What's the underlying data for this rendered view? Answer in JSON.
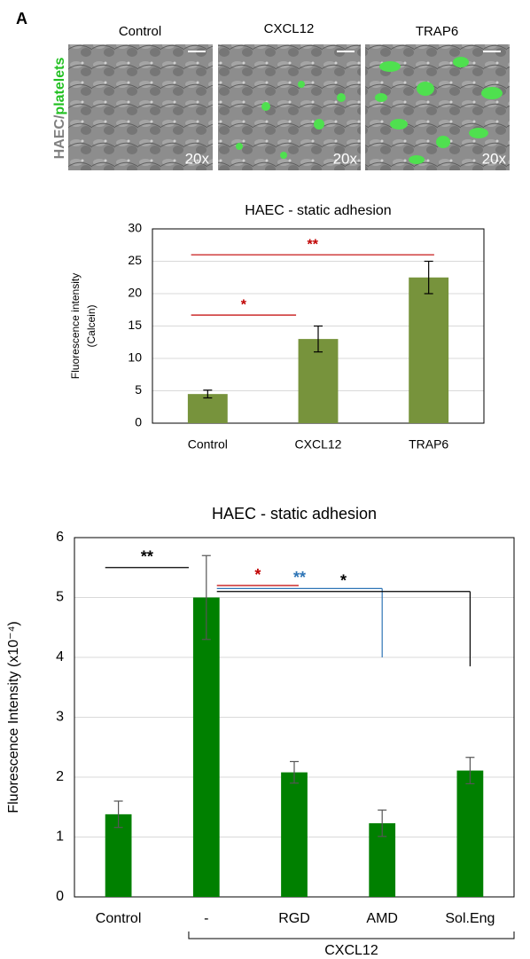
{
  "panel_label": "A",
  "image_side_label": {
    "part1": "HAEC/",
    "part2": "platelets"
  },
  "images": [
    {
      "label": "Control",
      "magnification": "20x"
    },
    {
      "label": "CXCL12",
      "magnification": "20x"
    },
    {
      "label": "TRAP6",
      "magnification": "20x"
    }
  ],
  "chart_data": [
    {
      "type": "bar",
      "title": "HAEC - static  adhesion",
      "ylabel": [
        "Fluorescence  intensity",
        "(Calcein)"
      ],
      "categories": [
        "Control",
        "CXCL12",
        "TRAP6"
      ],
      "values": [
        4.5,
        13,
        22.5
      ],
      "errors": [
        0.6,
        2,
        2.5
      ],
      "color": "#77933c",
      "ylim": [
        0,
        30
      ],
      "yticks": [
        0,
        5,
        10,
        15,
        20,
        25,
        30
      ],
      "grid": true,
      "annotations": [
        {
          "text": "*",
          "from": 0,
          "to": 1,
          "y": 16.7,
          "color": "#c00000"
        },
        {
          "text": "**",
          "from": 0,
          "to": 2,
          "y": 26,
          "color": "#c00000"
        }
      ]
    },
    {
      "type": "bar",
      "title": "HAEC - static  adhesion",
      "ylabel": [
        "Fluorescence  Intensity  (x10⁻⁴)"
      ],
      "categories": [
        "Control",
        "-",
        "RGD",
        "AMD",
        "Sol.Eng"
      ],
      "values": [
        1.38,
        5.0,
        2.08,
        1.23,
        2.11
      ],
      "errors": [
        0.22,
        0.7,
        0.18,
        0.22,
        0.22
      ],
      "color": "#008000",
      "ylim": [
        0,
        6
      ],
      "yticks": [
        0,
        1,
        2,
        3,
        4,
        5,
        6
      ],
      "grid": true,
      "groups": [
        {
          "label": "CXCL12",
          "from": 1,
          "to": 4
        }
      ],
      "annotations": [
        {
          "text": "**",
          "from": 0,
          "to": 1,
          "y": 5.5,
          "color": "#000000"
        },
        {
          "text": "*",
          "from": 1,
          "to": 2,
          "y": 5.2,
          "color": "#c00000"
        },
        {
          "text": "**",
          "from": 1,
          "to": 3,
          "y": 5.15,
          "drop": 4.0,
          "color": "#2e75b6"
        },
        {
          "text": "*",
          "from": 1,
          "to": 4,
          "y": 5.1,
          "drop": 3.85,
          "color": "#000000"
        }
      ]
    }
  ]
}
